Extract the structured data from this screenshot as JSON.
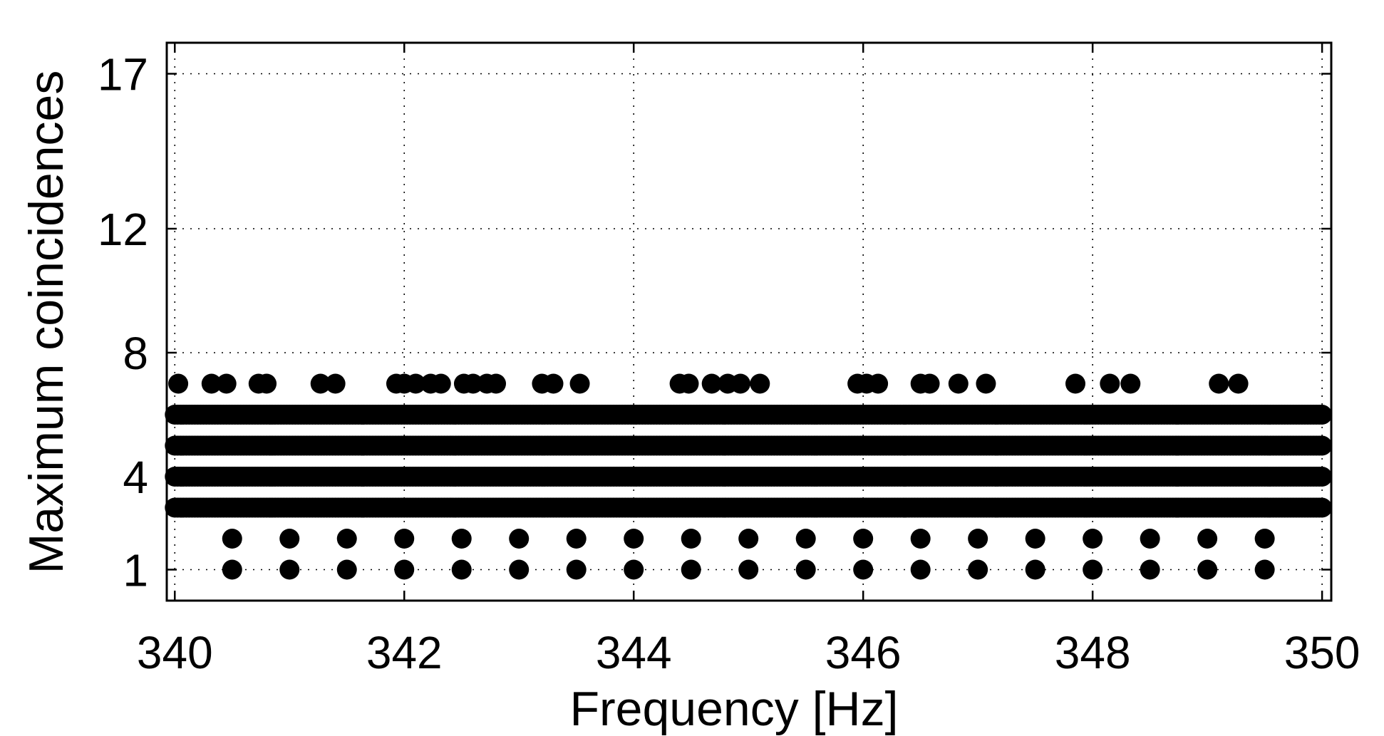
{
  "chart_data": {
    "type": "scatter",
    "xlabel": "Frequency [Hz]",
    "ylabel": "Maximum coincidences",
    "xlim": [
      339.93,
      350.08
    ],
    "ylim": [
      0,
      18
    ],
    "xticks": [
      340,
      342,
      344,
      346,
      348,
      350
    ],
    "yticks": [
      1,
      4,
      8,
      12,
      17
    ],
    "grid": true,
    "marker_color": "#000000",
    "dense_rows": [
      {
        "y": 3,
        "x_start": 340,
        "x_end": 350
      },
      {
        "y": 4,
        "x_start": 340,
        "x_end": 350
      },
      {
        "y": 5,
        "x_start": 340,
        "x_end": 350
      },
      {
        "y": 6,
        "x_start": 340,
        "x_end": 350
      }
    ],
    "sparse_points": [
      {
        "y": 7,
        "x": [
          340.03,
          340.32,
          340.45,
          340.73,
          340.8,
          341.27,
          341.4,
          341.93,
          342.0,
          342.1,
          342.23,
          342.32,
          342.52,
          342.6,
          342.72,
          342.8,
          343.2,
          343.3,
          343.53,
          344.4,
          344.48,
          344.68,
          344.82,
          344.93,
          345.1,
          345.95,
          346.03,
          346.13,
          346.5,
          346.58,
          346.83,
          347.07,
          347.85,
          348.15,
          348.33,
          349.1,
          349.27
        ]
      },
      {
        "y": 2,
        "x": [
          340.5,
          341.0,
          341.5,
          342.0,
          342.5,
          343.0,
          343.5,
          344.0,
          344.5,
          345.0,
          345.5,
          346.0,
          346.5,
          347.0,
          347.5,
          348.0,
          348.5,
          349.0,
          349.5
        ]
      },
      {
        "y": 1,
        "x": [
          340.5,
          341.0,
          341.5,
          342.0,
          342.5,
          343.0,
          343.5,
          344.0,
          344.5,
          345.0,
          345.5,
          346.0,
          346.5,
          347.0,
          347.5,
          348.0,
          348.5,
          349.0,
          349.5
        ]
      }
    ]
  }
}
